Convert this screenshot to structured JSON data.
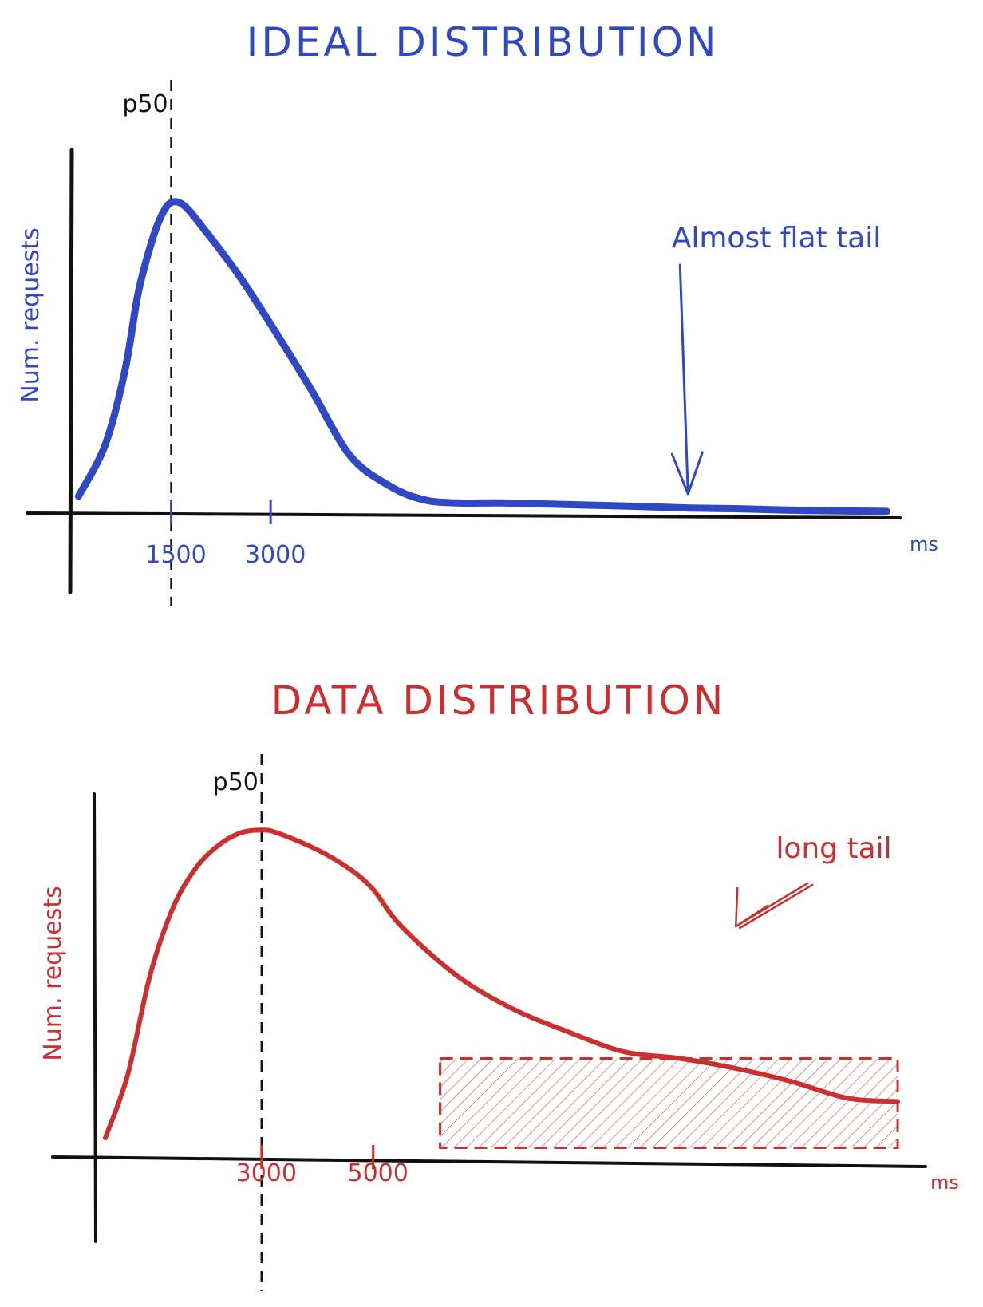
{
  "colors": {
    "ideal": "#3148c4",
    "data": "#cc2f2f",
    "ink": "#111111"
  },
  "chart_data": [
    {
      "type": "line",
      "title": "IDEAL DISTRIBUTION",
      "xlabel": "ms",
      "ylabel": "Num. requests",
      "x_ticks": [
        1500,
        3000
      ],
      "marker": {
        "label": "p50",
        "x": 1500
      },
      "annotation": {
        "text": "Almost flat tail",
        "points_to_x": 9300
      },
      "xlim": [
        0,
        12500
      ],
      "ylim": [
        0,
        100
      ],
      "series": [
        {
          "x": [
            100,
            500,
            800,
            1000,
            1200,
            1350,
            1500,
            1700,
            2000,
            2500,
            3000,
            3600,
            4200,
            4800,
            5300,
            5800,
            6500,
            7500,
            8500,
            9300,
            10000,
            11000,
            12300
          ],
          "y": [
            5,
            20,
            42,
            65,
            80,
            88,
            92,
            91,
            84,
            71,
            56,
            37,
            17,
            8,
            4,
            3,
            3,
            2.5,
            2,
            1.5,
            1.3,
            0.8,
            0.5
          ]
        }
      ]
    },
    {
      "type": "line",
      "title": "DATA DISTRIBUTION",
      "xlabel": "ms",
      "ylabel": "Num. requests",
      "x_ticks": [
        3000,
        5000
      ],
      "marker": {
        "label": "p50",
        "x": 3000
      },
      "annotation": {
        "text": "long tail",
        "points_to_x": 11500
      },
      "highlight_region": {
        "x_start": 6200,
        "x_end": 14400,
        "y_start": 3,
        "y_end": 30
      },
      "xlim": [
        0,
        14900
      ],
      "ylim": [
        0,
        100
      ],
      "series": [
        {
          "x": [
            200,
            600,
            1000,
            1400,
            1800,
            2200,
            2600,
            3000,
            3300,
            4000,
            4600,
            5000,
            5500,
            6500,
            7500,
            8500,
            9500,
            10500,
            11500,
            12500,
            13500,
            14400
          ],
          "y": [
            6,
            25,
            55,
            75,
            87,
            94,
            98,
            99,
            98,
            93,
            87,
            81,
            70,
            55,
            45,
            38,
            32,
            30,
            27,
            23,
            18,
            17
          ]
        }
      ]
    }
  ]
}
